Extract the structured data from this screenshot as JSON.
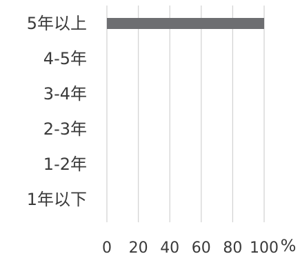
{
  "chart_data": {
    "type": "bar",
    "orientation": "horizontal",
    "categories": [
      "5年以上",
      "4-5年",
      "3-4年",
      "2-3年",
      "1-2年",
      "1年以下"
    ],
    "values": [
      100,
      0,
      0,
      0,
      0,
      0
    ],
    "xlim": [
      0,
      100
    ],
    "x_ticks": [
      "0",
      "20",
      "40",
      "60",
      "80",
      "100"
    ],
    "unit_label": "%",
    "grid": true,
    "legend": "none",
    "bar_color": "#6d6e71",
    "grid_color": "#d4d4d4",
    "text_color": "#3a3a3a"
  }
}
